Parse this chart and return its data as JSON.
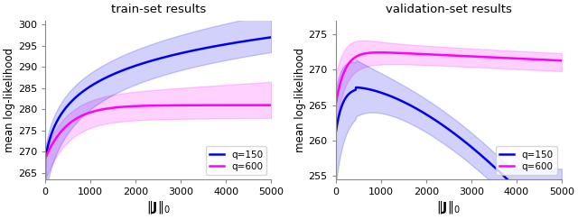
{
  "title_left": "train-set results",
  "title_right": "validation-set results",
  "xlabel": "$\\|\\mathbf{J}\\|_0$",
  "ylabel": "mean log-likelihood",
  "color_q150": "#0000ee",
  "color_q600": "#ff00ff",
  "fill_alpha": 0.18,
  "left_ylim": [
    263.5,
    301
  ],
  "right_ylim": [
    254.5,
    277
  ],
  "left_yticks": [
    265,
    270,
    275,
    280,
    285,
    290,
    295,
    300
  ],
  "right_yticks": [
    255,
    260,
    265,
    270,
    275
  ],
  "xticks": [
    0,
    1000,
    2000,
    3000,
    4000,
    5000
  ]
}
